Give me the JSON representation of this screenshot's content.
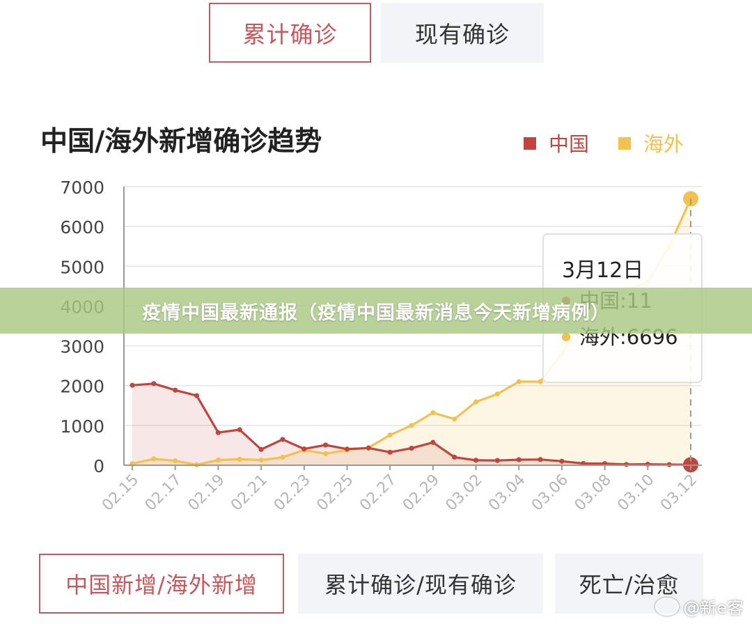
{
  "top_tabs": [
    {
      "label": "累计确诊",
      "active": true
    },
    {
      "label": "现有确诊",
      "active": false
    }
  ],
  "chart_data": {
    "type": "area",
    "title": "中国/海外新增确诊趋势",
    "xlabel": "",
    "ylabel": "",
    "ylim": [
      0,
      7000
    ],
    "yticks": [
      0,
      1000,
      2000,
      3000,
      4000,
      5000,
      6000,
      7000
    ],
    "x_tick_labels": [
      "02.15",
      "02.17",
      "02.19",
      "02.21",
      "02.23",
      "02.25",
      "02.27",
      "02.29",
      "03.02",
      "03.04",
      "03.06",
      "03.08",
      "03.10",
      "03.12"
    ],
    "x": [
      "02.15",
      "02.16",
      "02.17",
      "02.18",
      "02.19",
      "02.20",
      "02.21",
      "02.22",
      "02.23",
      "02.24",
      "02.25",
      "02.26",
      "02.27",
      "02.28",
      "02.29",
      "03.01",
      "03.02",
      "03.03",
      "03.04",
      "03.05",
      "03.06",
      "03.07",
      "03.08",
      "03.09",
      "03.10",
      "03.11",
      "03.12"
    ],
    "legend_position": "top-right",
    "grid": true,
    "series": [
      {
        "name": "中国",
        "color": "#c0453f",
        "values": [
          2009,
          2051,
          1886,
          1749,
          820,
          892,
          397,
          648,
          409,
          508,
          406,
          433,
          327,
          427,
          573,
          202,
          125,
          119,
          139,
          143,
          99,
          44,
          40,
          19,
          24,
          15,
          11
        ]
      },
      {
        "name": "海外",
        "color": "#f2c14e",
        "values": [
          40,
          160,
          110,
          10,
          130,
          150,
          130,
          200,
          380,
          290,
          380,
          440,
          760,
          1000,
          1320,
          1160,
          1590,
          1790,
          2100,
          2100,
          2800,
          3700,
          3900,
          4400,
          4600,
          5500,
          6696
        ]
      }
    ],
    "tooltip": {
      "date": "3月12日",
      "rows": [
        {
          "label": "中国:11",
          "color": "#c0453f"
        },
        {
          "label": "海外:6696",
          "color": "#f2c14e"
        }
      ]
    }
  },
  "banner_text": "疫情中国最新通报（疫情中国最新消息今天新增病例）",
  "bottom_buttons": [
    {
      "label": "中国新增/海外新增",
      "active": true
    },
    {
      "label": "累计确诊/现有确诊",
      "active": false
    },
    {
      "label": "死亡/治愈",
      "active": false
    }
  ],
  "watermark": "@新e客"
}
